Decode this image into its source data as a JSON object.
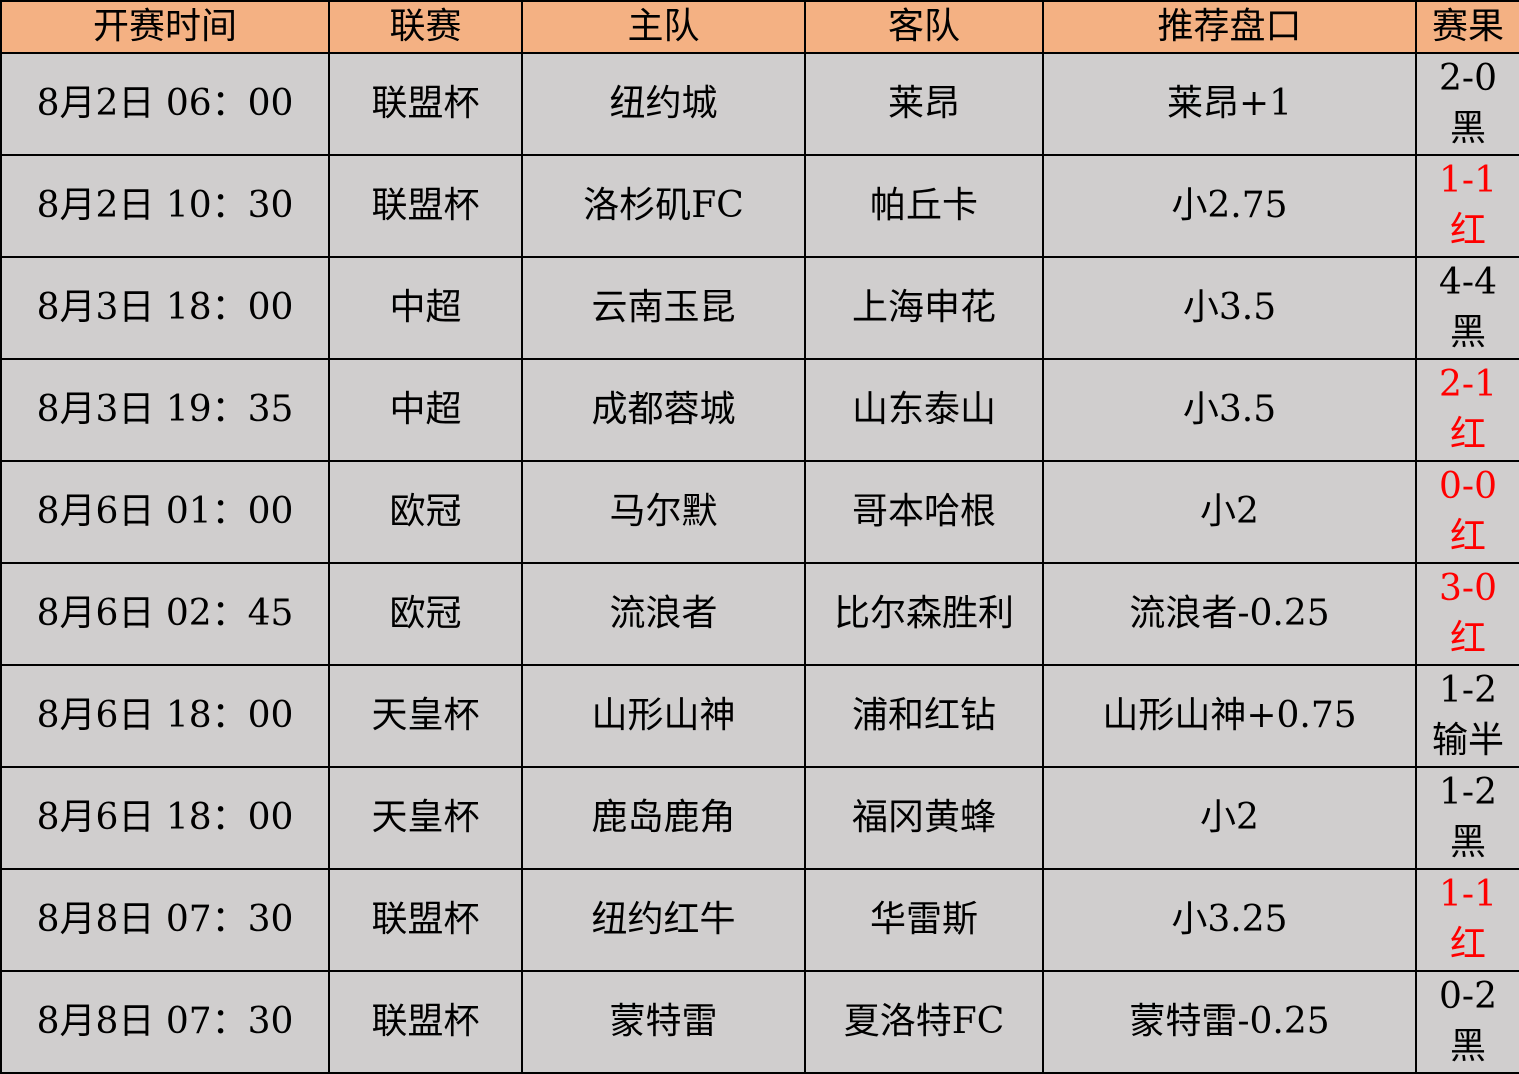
{
  "colors": {
    "header_bg": "#F4B183",
    "row_bg": "#D0CECE",
    "win": "#FF0000",
    "loss": "#000000"
  },
  "headers": [
    "开赛时间",
    "联赛",
    "主队",
    "客队",
    "推荐盘口",
    "赛果"
  ],
  "rows": [
    {
      "time": "8月2日 06：00",
      "league": "联盟杯",
      "home": "纽约城",
      "away": "莱昂",
      "pick": "莱昂+1",
      "score": "2-0",
      "result": "黑",
      "red": false
    },
    {
      "time": "8月2日 10：30",
      "league": "联盟杯",
      "home": "洛杉矶FC",
      "away": "帕丘卡",
      "pick": "小2.75",
      "score": "1-1",
      "result": "红",
      "red": true
    },
    {
      "time": "8月3日 18：00",
      "league": "中超",
      "home": "云南玉昆",
      "away": "上海申花",
      "pick": "小3.5",
      "score": "4-4",
      "result": "黑",
      "red": false
    },
    {
      "time": "8月3日 19：35",
      "league": "中超",
      "home": "成都蓉城",
      "away": "山东泰山",
      "pick": "小3.5",
      "score": "2-1",
      "result": "红",
      "red": true
    },
    {
      "time": "8月6日 01：00",
      "league": "欧冠",
      "home": "马尔默",
      "away": "哥本哈根",
      "pick": "小2",
      "score": "0-0",
      "result": "红",
      "red": true
    },
    {
      "time": "8月6日 02：45",
      "league": "欧冠",
      "home": "流浪者",
      "away": "比尔森胜利",
      "pick": "流浪者-0.25",
      "score": "3-0",
      "result": "红",
      "red": true
    },
    {
      "time": "8月6日 18：00",
      "league": "天皇杯",
      "home": "山形山神",
      "away": "浦和红钻",
      "pick": "山形山神+0.75",
      "score": "1-2",
      "result": "输半",
      "red": false
    },
    {
      "time": "8月6日 18：00",
      "league": "天皇杯",
      "home": "鹿岛鹿角",
      "away": "福冈黄蜂",
      "pick": "小2",
      "score": "1-2",
      "result": "黑",
      "red": false
    },
    {
      "time": "8月8日 07：30",
      "league": "联盟杯",
      "home": "纽约红牛",
      "away": "华雷斯",
      "pick": "小3.25",
      "score": "1-1",
      "result": "红",
      "red": true
    },
    {
      "time": "8月8日 07：30",
      "league": "联盟杯",
      "home": "蒙特雷",
      "away": "夏洛特FC",
      "pick": "蒙特雷-0.25",
      "score": "0-2",
      "result": "黑",
      "red": false
    }
  ]
}
